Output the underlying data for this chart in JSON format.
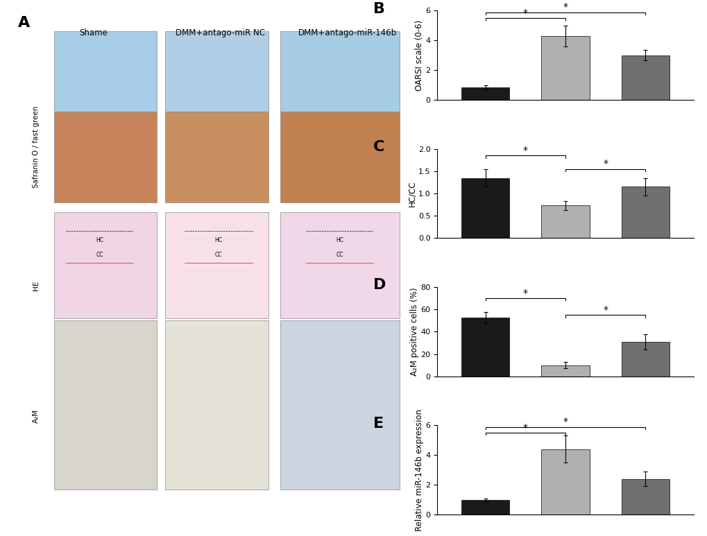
{
  "legend_labels": [
    "Shame",
    "DMM+antago-miR NC",
    "DMM+antago-miR-146b"
  ],
  "colors": [
    "#1a1a1a",
    "#b0b0b0",
    "#707070"
  ],
  "panel_B": {
    "title": "B",
    "ylabel": "OARSI scale (0-6)",
    "ylim": [
      0,
      6
    ],
    "yticks": [
      0,
      2,
      4,
      6
    ],
    "values": [
      0.85,
      4.3,
      3.0
    ],
    "errors": [
      0.15,
      0.7,
      0.35
    ],
    "sig1": {
      "bars": [
        0,
        1
      ],
      "y": 5.5,
      "label": "*"
    },
    "sig2": {
      "bars": [
        0,
        2
      ],
      "y": 5.9,
      "label": "*"
    }
  },
  "panel_C": {
    "title": "C",
    "ylabel": "HC/CC",
    "ylim": [
      0.0,
      2.0
    ],
    "yticks": [
      0.0,
      0.5,
      1.0,
      1.5,
      2.0
    ],
    "values": [
      1.35,
      0.73,
      1.15
    ],
    "errors": [
      0.2,
      0.1,
      0.2
    ],
    "sig1": {
      "bars": [
        0,
        1
      ],
      "y": 1.85,
      "label": "*"
    },
    "sig2": {
      "bars": [
        1,
        2
      ],
      "y": 1.55,
      "label": "*"
    }
  },
  "panel_D": {
    "title": "D",
    "ylabel": "A₂M positive cells (%)",
    "ylim": [
      0,
      80
    ],
    "yticks": [
      0,
      20,
      40,
      60,
      80
    ],
    "values": [
      53,
      10,
      31
    ],
    "errors": [
      5,
      3,
      7
    ],
    "sig1": {
      "bars": [
        0,
        1
      ],
      "y": 70,
      "label": "*"
    },
    "sig2": {
      "bars": [
        1,
        2
      ],
      "y": 55,
      "label": "*"
    }
  },
  "panel_E": {
    "title": "E",
    "ylabel": "Relative miR-146b expression",
    "ylim": [
      0,
      6
    ],
    "yticks": [
      0,
      2,
      4,
      6
    ],
    "values": [
      1.0,
      4.4,
      2.4
    ],
    "errors": [
      0.1,
      0.9,
      0.5
    ],
    "sig1": {
      "bars": [
        0,
        1
      ],
      "y": 5.5,
      "label": "*"
    },
    "sig2": {
      "bars": [
        0,
        2
      ],
      "y": 5.9,
      "label": "*"
    }
  },
  "col_labels": [
    "Shame",
    "DMM+antago-miR NC",
    "DMM+antago-miR-146b"
  ],
  "row_labels": [
    "Safranin O / fast green",
    "HE",
    "A₂M"
  ],
  "bg_color": "#ffffff",
  "bar_width": 0.6,
  "label_A": "A",
  "label_fontsize": 16,
  "tick_fontsize": 8,
  "ylabel_fontsize": 8.5,
  "legend_fontsize": 9
}
